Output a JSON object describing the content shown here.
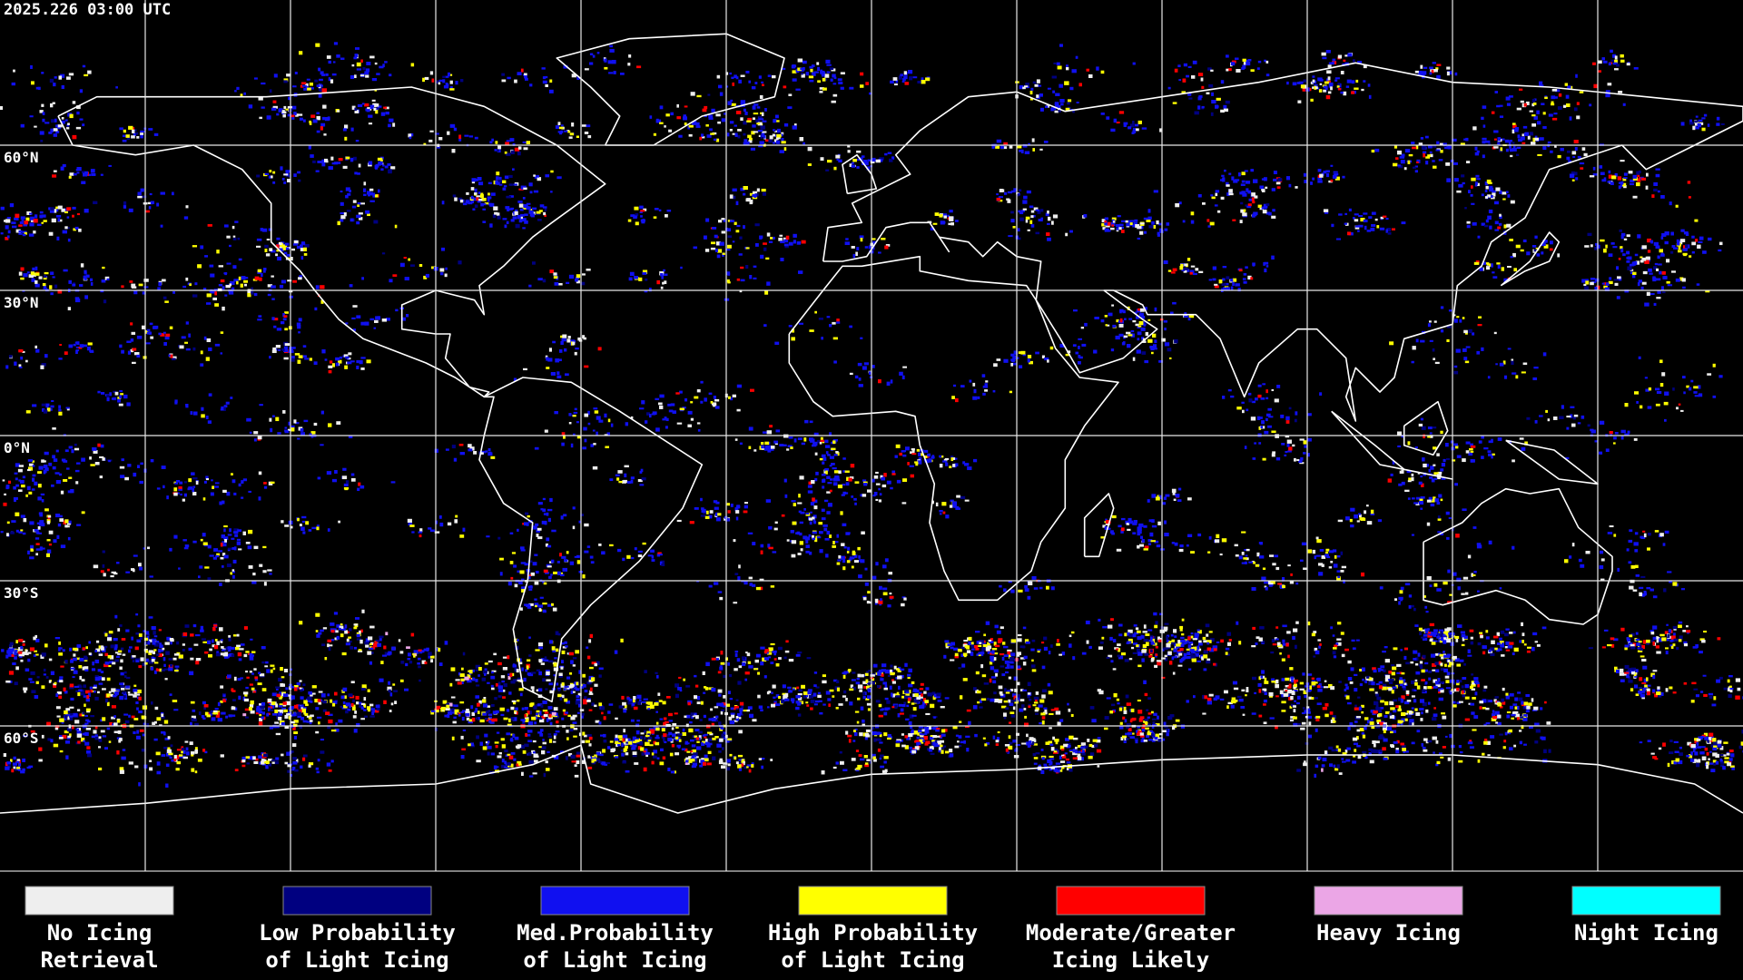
{
  "timestamp": "2025.226 03:00 UTC",
  "latitude_labels": [
    "60°N",
    "30°N",
    "0°N",
    "30°S",
    "60°S"
  ],
  "legend": [
    {
      "label": [
        "No Icing",
        "Retrieval"
      ],
      "color": "#eeeeee"
    },
    {
      "label": [
        "Low Probability",
        "of Light Icing"
      ],
      "color": "#000080"
    },
    {
      "label": [
        "Med.Probability",
        "of Light Icing"
      ],
      "color": "#1010f0"
    },
    {
      "label": [
        "High Probability",
        "of Light Icing"
      ],
      "color": "#ffff00"
    },
    {
      "label": [
        "Moderate/Greater",
        "Icing Likely"
      ],
      "color": "#ff0000"
    },
    {
      "label": [
        "Heavy Icing",
        ""
      ],
      "color": "#eba6e6"
    },
    {
      "label": [
        "Night Icing",
        ""
      ],
      "color": "#00ffff"
    }
  ]
}
